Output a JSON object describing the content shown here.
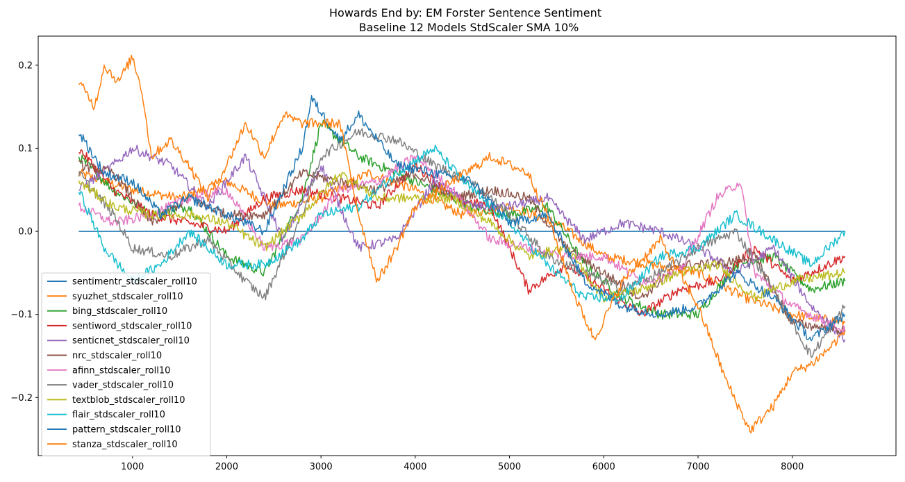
{
  "chart_data": {
    "type": "line",
    "title": "Howards End by: EM Forster Sentence Sentiment",
    "subtitle": "Baseline 12 Models StdScaler SMA 10%",
    "xlabel": "",
    "ylabel": "",
    "xlim": [
      0,
      9100
    ],
    "ylim": [
      -0.27,
      0.235
    ],
    "xticks": [
      1000,
      2000,
      3000,
      4000,
      5000,
      6000,
      7000,
      8000
    ],
    "yticks": [
      -0.2,
      -0.1,
      0.0,
      0.1,
      0.2
    ],
    "ytick_labels": [
      "−0.2",
      "−0.1",
      "0.0",
      "0.1",
      "0.2"
    ],
    "grid": false,
    "legend_placement": "lower-left",
    "series": [
      {
        "name": "sentimentr_stdscaler_roll10",
        "color": "#1f77b4",
        "points": [
          [
            430,
            0
          ],
          [
            8560,
            0
          ]
        ]
      },
      {
        "name": "syuzhet_stdscaler_roll10",
        "color": "#ff7f0e",
        "points": [
          [
            430,
            0.07
          ],
          [
            1000,
            0.05
          ],
          [
            1500,
            0.04
          ],
          [
            2000,
            0.06
          ],
          [
            2500,
            0.03
          ],
          [
            3000,
            0.04
          ],
          [
            3500,
            0.07
          ],
          [
            4000,
            0.05
          ],
          [
            4500,
            0.02
          ],
          [
            5000,
            0.03
          ],
          [
            5500,
            0.01
          ],
          [
            6000,
            -0.03
          ],
          [
            6500,
            -0.04
          ],
          [
            7000,
            -0.05
          ],
          [
            7500,
            -0.08
          ],
          [
            8000,
            -0.1
          ],
          [
            8560,
            -0.11
          ]
        ]
      },
      {
        "name": "bing_stdscaler_roll10",
        "color": "#2ca02c",
        "points": [
          [
            430,
            0.09
          ],
          [
            800,
            0.05
          ],
          [
            1200,
            0.02
          ],
          [
            1600,
            0.03
          ],
          [
            2000,
            -0.03
          ],
          [
            2400,
            -0.05
          ],
          [
            2800,
            0.04
          ],
          [
            3000,
            0.13
          ],
          [
            3400,
            0.09
          ],
          [
            3800,
            0.07
          ],
          [
            4200,
            0.05
          ],
          [
            4600,
            0.03
          ],
          [
            5000,
            0.02
          ],
          [
            5400,
            0.03
          ],
          [
            5800,
            -0.04
          ],
          [
            6200,
            -0.08
          ],
          [
            6600,
            -0.1
          ],
          [
            7000,
            -0.1
          ],
          [
            7400,
            -0.04
          ],
          [
            7800,
            -0.03
          ],
          [
            8200,
            -0.07
          ],
          [
            8560,
            -0.06
          ]
        ]
      },
      {
        "name": "sentiword_stdscaler_roll10",
        "color": "#d62728",
        "points": [
          [
            430,
            0.1
          ],
          [
            800,
            0.05
          ],
          [
            1200,
            0.02
          ],
          [
            1600,
            0.01
          ],
          [
            2000,
            0.0
          ],
          [
            2400,
            0.04
          ],
          [
            2800,
            0.05
          ],
          [
            3200,
            0.04
          ],
          [
            3600,
            0.03
          ],
          [
            4000,
            0.08
          ],
          [
            4400,
            0.04
          ],
          [
            4800,
            0.03
          ],
          [
            5200,
            -0.07
          ],
          [
            5600,
            -0.04
          ],
          [
            6000,
            -0.07
          ],
          [
            6400,
            -0.1
          ],
          [
            6800,
            -0.07
          ],
          [
            7200,
            -0.06
          ],
          [
            7600,
            -0.02
          ],
          [
            8000,
            -0.06
          ],
          [
            8560,
            -0.03
          ]
        ]
      },
      {
        "name": "senticnet_stdscaler_roll10",
        "color": "#9467bd",
        "points": [
          [
            430,
            0.05
          ],
          [
            800,
            0.08
          ],
          [
            1000,
            0.1
          ],
          [
            1400,
            0.08
          ],
          [
            1800,
            0.03
          ],
          [
            2200,
            0.09
          ],
          [
            2600,
            -0.01
          ],
          [
            3000,
            0.08
          ],
          [
            3400,
            -0.02
          ],
          [
            3800,
            -0.01
          ],
          [
            4200,
            0.06
          ],
          [
            4600,
            0.03
          ],
          [
            5000,
            0.03
          ],
          [
            5400,
            0.04
          ],
          [
            5800,
            -0.01
          ],
          [
            6200,
            0.01
          ],
          [
            6600,
            0.0
          ],
          [
            7000,
            -0.02
          ],
          [
            7400,
            -0.05
          ],
          [
            7800,
            -0.02
          ],
          [
            8200,
            -0.09
          ],
          [
            8560,
            -0.13
          ]
        ]
      },
      {
        "name": "nrc_stdscaler_roll10",
        "color": "#8c564b",
        "points": [
          [
            430,
            0.08
          ],
          [
            800,
            0.07
          ],
          [
            1200,
            0.01
          ],
          [
            1600,
            0.04
          ],
          [
            2000,
            0.02
          ],
          [
            2400,
            0.02
          ],
          [
            2800,
            0.07
          ],
          [
            3200,
            0.06
          ],
          [
            3600,
            0.05
          ],
          [
            4000,
            0.07
          ],
          [
            4400,
            0.04
          ],
          [
            4800,
            0.05
          ],
          [
            5200,
            0.04
          ],
          [
            5600,
            -0.02
          ],
          [
            6000,
            -0.05
          ],
          [
            6400,
            -0.08
          ],
          [
            6800,
            -0.04
          ],
          [
            7200,
            -0.04
          ],
          [
            7600,
            -0.03
          ],
          [
            8000,
            -0.11
          ],
          [
            8560,
            -0.12
          ]
        ]
      },
      {
        "name": "afinn_stdscaler_roll10",
        "color": "#e377c2",
        "points": [
          [
            430,
            0.03
          ],
          [
            800,
            0.01
          ],
          [
            1200,
            0.02
          ],
          [
            1600,
            0.04
          ],
          [
            2000,
            0.05
          ],
          [
            2400,
            -0.02
          ],
          [
            2800,
            -0.01
          ],
          [
            3200,
            0.05
          ],
          [
            3600,
            0.06
          ],
          [
            4000,
            0.09
          ],
          [
            4400,
            0.05
          ],
          [
            4800,
            -0.01
          ],
          [
            5200,
            -0.02
          ],
          [
            5600,
            -0.03
          ],
          [
            6000,
            -0.03
          ],
          [
            6400,
            -0.06
          ],
          [
            6800,
            -0.05
          ],
          [
            7200,
            0.04
          ],
          [
            7450,
            0.06
          ],
          [
            7600,
            -0.05
          ],
          [
            8000,
            -0.09
          ],
          [
            8560,
            -0.12
          ]
        ]
      },
      {
        "name": "vader_stdscaler_roll10",
        "color": "#7f7f7f",
        "points": [
          [
            430,
            0.07
          ],
          [
            800,
            0.02
          ],
          [
            1000,
            -0.02
          ],
          [
            1400,
            -0.03
          ],
          [
            1800,
            -0.01
          ],
          [
            2200,
            -0.06
          ],
          [
            2400,
            -0.08
          ],
          [
            2800,
            0.02
          ],
          [
            3000,
            0.09
          ],
          [
            3400,
            0.12
          ],
          [
            3800,
            0.11
          ],
          [
            4200,
            0.08
          ],
          [
            4600,
            0.06
          ],
          [
            5000,
            0.02
          ],
          [
            5400,
            -0.03
          ],
          [
            5800,
            -0.05
          ],
          [
            6200,
            -0.07
          ],
          [
            6600,
            -0.05
          ],
          [
            7000,
            -0.02
          ],
          [
            7400,
            0.0
          ],
          [
            7800,
            -0.07
          ],
          [
            8200,
            -0.15
          ],
          [
            8560,
            -0.09
          ]
        ]
      },
      {
        "name": "textblob_stdscaler_roll10",
        "color": "#bcbd22",
        "points": [
          [
            430,
            0.06
          ],
          [
            800,
            0.03
          ],
          [
            1200,
            0.02
          ],
          [
            1600,
            0.02
          ],
          [
            2000,
            0.01
          ],
          [
            2400,
            -0.02
          ],
          [
            2800,
            0.02
          ],
          [
            3200,
            0.07
          ],
          [
            3600,
            0.04
          ],
          [
            4000,
            0.04
          ],
          [
            4400,
            0.04
          ],
          [
            4800,
            0.01
          ],
          [
            5200,
            -0.03
          ],
          [
            5600,
            -0.02
          ],
          [
            6000,
            -0.08
          ],
          [
            6400,
            -0.07
          ],
          [
            6800,
            -0.05
          ],
          [
            7200,
            -0.04
          ],
          [
            7600,
            -0.08
          ],
          [
            8000,
            -0.06
          ],
          [
            8560,
            -0.05
          ]
        ]
      },
      {
        "name": "flair_stdscaler_roll10",
        "color": "#17becf",
        "points": [
          [
            430,
            0.05
          ],
          [
            700,
            -0.02
          ],
          [
            1000,
            -0.06
          ],
          [
            1300,
            -0.04
          ],
          [
            1600,
            0.0
          ],
          [
            2000,
            -0.04
          ],
          [
            2400,
            -0.04
          ],
          [
            2800,
            -0.01
          ],
          [
            3000,
            0.02
          ],
          [
            3400,
            0.03
          ],
          [
            3800,
            0.07
          ],
          [
            4200,
            0.1
          ],
          [
            4600,
            0.05
          ],
          [
            5000,
            0.01
          ],
          [
            5400,
            -0.04
          ],
          [
            5800,
            -0.08
          ],
          [
            6200,
            -0.08
          ],
          [
            6600,
            -0.03
          ],
          [
            7000,
            -0.02
          ],
          [
            7400,
            0.02
          ],
          [
            7800,
            -0.01
          ],
          [
            8200,
            -0.04
          ],
          [
            8560,
            0.0
          ]
        ]
      },
      {
        "name": "pattern_stdscaler_roll10",
        "color": "#1f77b4",
        "points": [
          [
            430,
            0.12
          ],
          [
            700,
            0.07
          ],
          [
            1000,
            0.06
          ],
          [
            1300,
            0.02
          ],
          [
            1600,
            0.04
          ],
          [
            2000,
            0.02
          ],
          [
            2400,
            0.0
          ],
          [
            2800,
            0.1
          ],
          [
            2900,
            0.16
          ],
          [
            3200,
            0.11
          ],
          [
            3400,
            0.14
          ],
          [
            3800,
            0.08
          ],
          [
            4200,
            0.07
          ],
          [
            4600,
            0.06
          ],
          [
            5000,
            0.01
          ],
          [
            5400,
            0.02
          ],
          [
            5800,
            -0.06
          ],
          [
            6200,
            -0.09
          ],
          [
            6600,
            -0.1
          ],
          [
            7000,
            -0.09
          ],
          [
            7400,
            -0.05
          ],
          [
            7800,
            -0.08
          ],
          [
            8200,
            -0.13
          ],
          [
            8560,
            -0.1
          ]
        ]
      },
      {
        "name": "stanza_stdscaler_roll10",
        "color": "#ff7f0e",
        "points": [
          [
            430,
            0.18
          ],
          [
            600,
            0.15
          ],
          [
            700,
            0.2
          ],
          [
            850,
            0.18
          ],
          [
            1000,
            0.21
          ],
          [
            1100,
            0.17
          ],
          [
            1200,
            0.09
          ],
          [
            1400,
            0.11
          ],
          [
            1600,
            0.08
          ],
          [
            1800,
            0.04
          ],
          [
            2000,
            0.08
          ],
          [
            2200,
            0.13
          ],
          [
            2400,
            0.09
          ],
          [
            2600,
            0.14
          ],
          [
            2800,
            0.13
          ],
          [
            3000,
            0.13
          ],
          [
            3200,
            0.13
          ],
          [
            3400,
            0.02
          ],
          [
            3600,
            -0.06
          ],
          [
            3800,
            -0.02
          ],
          [
            4000,
            0.03
          ],
          [
            4400,
            0.06
          ],
          [
            4800,
            0.09
          ],
          [
            5200,
            0.07
          ],
          [
            5400,
            0.02
          ],
          [
            5700,
            -0.08
          ],
          [
            5900,
            -0.13
          ],
          [
            6200,
            -0.06
          ],
          [
            6600,
            -0.01
          ],
          [
            7000,
            -0.09
          ],
          [
            7300,
            -0.18
          ],
          [
            7550,
            -0.24
          ],
          [
            7800,
            -0.21
          ],
          [
            8000,
            -0.17
          ],
          [
            8200,
            -0.16
          ],
          [
            8400,
            -0.14
          ],
          [
            8560,
            -0.12
          ]
        ]
      }
    ]
  }
}
